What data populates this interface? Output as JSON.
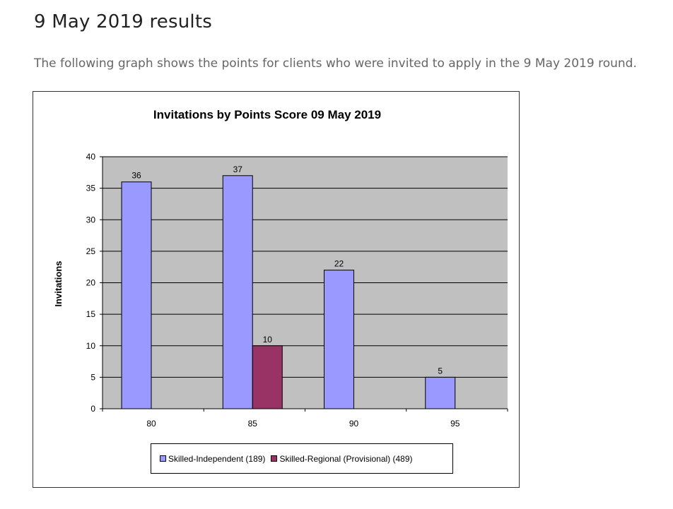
{
  "page": {
    "heading": "9 May 2019 results",
    "intro": "The following graph shows the points for clients who were invited to apply in the 9 May 2019 round."
  },
  "chart_data": {
    "type": "bar",
    "title": "Invitations by Points Score 09 May 2019",
    "xlabel": "",
    "ylabel": "Invitations",
    "categories": [
      "80",
      "85",
      "90",
      "95"
    ],
    "ylim": [
      0,
      40
    ],
    "yticks": [
      0,
      5,
      10,
      15,
      20,
      25,
      30,
      35,
      40
    ],
    "grid": true,
    "plot_background": "#c0c0c0",
    "legend_position": "bottom",
    "series": [
      {
        "name": "Skilled-Independent (189)",
        "color": "#9999ff",
        "values": [
          36,
          37,
          22,
          5
        ]
      },
      {
        "name": "Skilled-Regional (Provisional) (489)",
        "color": "#993366",
        "values": [
          null,
          10,
          null,
          null
        ]
      }
    ]
  }
}
